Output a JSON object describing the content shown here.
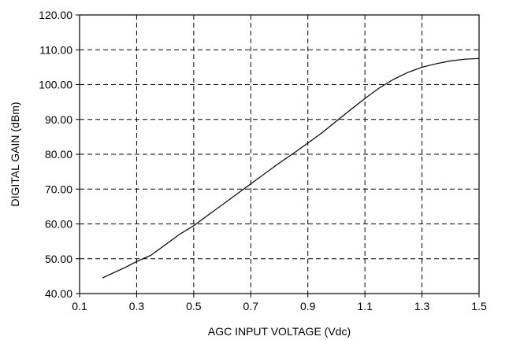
{
  "chart_data": {
    "type": "line",
    "title": "",
    "xlabel": "AGC INPUT VOLTAGE  (Vdc)",
    "ylabel": "DIGITAL GAIN (dBm)",
    "xlim": [
      0.1,
      1.5
    ],
    "ylim": [
      40,
      120
    ],
    "x_ticks": [
      0.1,
      0.3,
      0.5,
      0.7,
      0.9,
      1.1,
      1.3,
      1.5
    ],
    "x_tick_labels": [
      "0.1",
      "0.3",
      "0.5",
      "0.7",
      "0.9",
      "1.1",
      "1.3",
      "1.5"
    ],
    "y_ticks": [
      40,
      50,
      60,
      70,
      80,
      90,
      100,
      110,
      120
    ],
    "y_tick_labels": [
      "40.00",
      "50.00",
      "60.00",
      "70.00",
      "80.00",
      "90.00",
      "100.00",
      "110.00",
      "120.00"
    ],
    "grid": true,
    "series": [
      {
        "x": [
          0.18,
          0.22,
          0.26,
          0.3,
          0.35,
          0.4,
          0.45,
          0.5,
          0.55,
          0.6,
          0.65,
          0.7,
          0.75,
          0.8,
          0.85,
          0.9,
          0.95,
          1.0,
          1.05,
          1.1,
          1.15,
          1.2,
          1.25,
          1.3,
          1.35,
          1.4,
          1.45,
          1.5
        ],
        "y": [
          44.5,
          46.0,
          47.5,
          49.2,
          51.0,
          54.0,
          57.0,
          59.5,
          62.5,
          65.5,
          68.5,
          71.5,
          74.5,
          77.5,
          80.3,
          83.2,
          86.2,
          89.5,
          92.8,
          96.0,
          99.0,
          101.5,
          103.5,
          105.0,
          106.0,
          106.8,
          107.3,
          107.5
        ]
      }
    ]
  }
}
